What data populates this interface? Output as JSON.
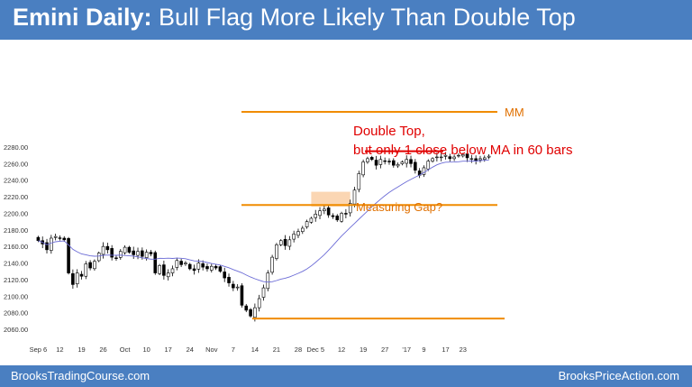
{
  "header": {
    "title_bold": "Emini Daily:",
    "title_rest": " Bull Flag More Likely Than Double Top"
  },
  "footer": {
    "left": "BrooksTradingCourse.com",
    "right": "BrooksPriceAction.com"
  },
  "colors": {
    "header_bg": "#4a7fc1",
    "bull_candle": "#ffffff",
    "bear_candle": "#000000",
    "moving_average": "#6b6bd6",
    "orange_lines": "#f08c00",
    "red_annotation": "#e00000",
    "gap_highlight": "#f9c89a"
  },
  "chart_data": {
    "type": "candlestick",
    "title": "Emini Daily",
    "ylim": [
      2055,
      2290
    ],
    "y_ticks": [
      "2060.00",
      "2080.00",
      "2100.00",
      "2120.00",
      "2140.00",
      "2160.00",
      "2180.00",
      "2200.00",
      "2220.00",
      "2240.00",
      "2260.00",
      "2280.00"
    ],
    "x_ticks": [
      "Sep 6",
      "12",
      "19",
      "26",
      "Oct",
      "10",
      "17",
      "24",
      "Nov",
      "7",
      "14",
      "21",
      "28",
      "Dec 5",
      "12",
      "19",
      "27",
      "'17",
      "9",
      "17",
      "23"
    ],
    "closes": [
      2167,
      2163,
      2156,
      2170,
      2172,
      2170,
      2168,
      2128,
      2114,
      2128,
      2124,
      2139,
      2134,
      2142,
      2152,
      2160,
      2156,
      2147,
      2146,
      2154,
      2159,
      2153,
      2150,
      2154,
      2148,
      2153,
      2151,
      2128,
      2137,
      2125,
      2128,
      2133,
      2143,
      2138,
      2140,
      2133,
      2131,
      2140,
      2135,
      2133,
      2136,
      2134,
      2130,
      2122,
      2116,
      2110,
      2111,
      2089,
      2083,
      2076,
      2086,
      2097,
      2110,
      2128,
      2147,
      2162,
      2167,
      2161,
      2168,
      2175,
      2178,
      2182,
      2190,
      2194,
      2199,
      2203,
      2205,
      2198,
      2196,
      2192,
      2200,
      2199,
      2212,
      2228,
      2248,
      2262,
      2266,
      2265,
      2258,
      2265,
      2263,
      2262,
      2258,
      2259,
      2262,
      2265,
      2260,
      2252,
      2246,
      2255,
      2263,
      2266,
      2268,
      2268,
      2270,
      2266,
      2268,
      2270,
      2271,
      2267,
      2266,
      2263,
      2266,
      2267,
      2269
    ],
    "annotations": [
      {
        "label": "MM",
        "price": 2280
      },
      {
        "label": "Double Top,",
        "line2": "but only 1 close below MA in 60 bars",
        "price": 2275
      },
      {
        "label": "Measuring Gap?",
        "price": 2210
      },
      {
        "label": "",
        "price": 2073
      }
    ]
  }
}
